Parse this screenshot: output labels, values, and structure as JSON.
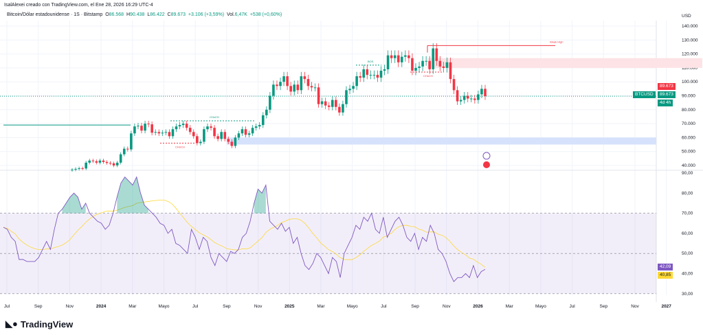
{
  "header": {
    "author_line": "IsalAlexei creado con TradingView.com, el Ene 28, 2026 16:29 UTC-4"
  },
  "legend": {
    "symbol": "Bitcoin/Dólar estadounidense · 1S · Bitstamp",
    "o_label": "O",
    "o": "86.568",
    "h_label": "H",
    "h": "90.438",
    "l_label": "L",
    "l": "86.422",
    "c_label": "C",
    "c": "89.673",
    "change": "+3.106 (+3,59%)",
    "vol_label": "Vol.",
    "vol": "6,47K",
    "vol_change": "+538 (+0,60%)"
  },
  "price_axis": {
    "currency": "USD",
    "ticks": [
      "140.000",
      "130.000",
      "120.000",
      "110.000",
      "100.000",
      "90.000",
      "80.000",
      "70.000",
      "60.000",
      "50.000",
      "40.000"
    ],
    "tick_values": [
      140,
      130,
      120,
      110,
      100,
      90,
      80,
      70,
      60,
      50,
      40
    ]
  },
  "rsi_axis": {
    "ticks": [
      "90,00",
      "80,00",
      "70,00",
      "60,00",
      "50,00",
      "40,00",
      "30,00"
    ],
    "tick_values": [
      90,
      80,
      70,
      60,
      50,
      40,
      30
    ]
  },
  "price_tags": {
    "symbol": "BTCUSD",
    "last": "89.673",
    "countdown": "4d 4h",
    "rsi": "42,09",
    "rsi_ma": "40,85"
  },
  "x_axis": {
    "ticks": [
      "Jul",
      "Sep",
      "Nov",
      "2024",
      "Mar",
      "Mayo",
      "Jul",
      "Sep",
      "Nov",
      "2025",
      "Mar",
      "Mayo",
      "Jul",
      "Sep",
      "Nov",
      "2026",
      "Mar",
      "Mayo",
      "Jul",
      "Sep",
      "Nov",
      "2027"
    ],
    "bold": [
      "2024",
      "2025",
      "2026",
      "2027"
    ]
  },
  "annotations": {
    "weak_high": "Weak High",
    "bos": "BOS",
    "choch": "CHoCH"
  },
  "colors": {
    "up": "#089981",
    "down": "#f23645",
    "rsi": "#7e57c2",
    "rsi_ma": "#fdd835",
    "supply": "#fde3e5",
    "demand": "#d6e2fb"
  },
  "logo": "TradingView",
  "chart_data": {
    "type": "candlestick",
    "timeframe": "weekly",
    "start": "2023-11",
    "closes": [
      37,
      37.5,
      38,
      37.8,
      42,
      43.5,
      43,
      42,
      43.5,
      42.5,
      41.8,
      41.5,
      40,
      42,
      48,
      52,
      51.5,
      63,
      68,
      68.5,
      65,
      70,
      69.5,
      63.5,
      64,
      63,
      63.5,
      64,
      61,
      66,
      68,
      69,
      70,
      67,
      64,
      61,
      56,
      57,
      66,
      68,
      67,
      61,
      59,
      64,
      59,
      57,
      54,
      60,
      63,
      66,
      62,
      63,
      67,
      68,
      69,
      76,
      80,
      90,
      98,
      97,
      100,
      104,
      97,
      93,
      98,
      94,
      104,
      102,
      97,
      96,
      96,
      84,
      86,
      83,
      82,
      87,
      82,
      78,
      84,
      94,
      95,
      97,
      104,
      103,
      109,
      105,
      105,
      105,
      103,
      108,
      109,
      119,
      117,
      119,
      114,
      118,
      119,
      117,
      108,
      110,
      111,
      115,
      115,
      109,
      124,
      115,
      111,
      110,
      114,
      102,
      94,
      86,
      87,
      90,
      88,
      88,
      87,
      91,
      95,
      89.673
    ],
    "rsi_start": "2023-07",
    "rsi": [
      63,
      62,
      58,
      56,
      47,
      47,
      46,
      46,
      46,
      48,
      52,
      56,
      52,
      62,
      70,
      72,
      75,
      78,
      80,
      78,
      72,
      75,
      70,
      68,
      66,
      65,
      62,
      64,
      70,
      78,
      85,
      88,
      86,
      84,
      88,
      80,
      74,
      72,
      70,
      68,
      65,
      64,
      60,
      62,
      55,
      54,
      52,
      50,
      62,
      58,
      52,
      58,
      56,
      48,
      44,
      50,
      48,
      46,
      51,
      50,
      52,
      58,
      60,
      66,
      75,
      82,
      80,
      84,
      66,
      64,
      62,
      65,
      61,
      63,
      55,
      58,
      50,
      44,
      42,
      45,
      50,
      48,
      44,
      40,
      48,
      46,
      38,
      50,
      54,
      58,
      64,
      62,
      68,
      66,
      70,
      62,
      60,
      68,
      58,
      62,
      66,
      68,
      64,
      58,
      56,
      60,
      52,
      58,
      56,
      64,
      60,
      52,
      50,
      46,
      40,
      36,
      38,
      38,
      40,
      38,
      44,
      38,
      41,
      42.09
    ]
  }
}
